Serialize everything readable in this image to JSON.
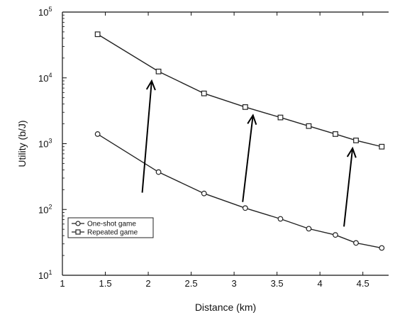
{
  "chart_data": {
    "type": "line",
    "xlabel": "Distance (km)",
    "ylabel": "Utility (b/J)",
    "xlim": [
      1,
      4.8
    ],
    "ylim": [
      10,
      100000
    ],
    "yscale": "log",
    "xticks": [
      "1",
      "1.5",
      "2",
      "2.5",
      "3",
      "3.5",
      "4",
      "4.5"
    ],
    "yticks": [
      {
        "base": "10",
        "exp": "1"
      },
      {
        "base": "10",
        "exp": "2"
      },
      {
        "base": "10",
        "exp": "3"
      },
      {
        "base": "10",
        "exp": "4"
      },
      {
        "base": "10",
        "exp": "5"
      }
    ],
    "x": [
      1.41,
      2.12,
      2.65,
      3.13,
      3.54,
      3.87,
      4.18,
      4.42,
      4.72
    ],
    "series": [
      {
        "name": "One-shot game",
        "marker": "circle",
        "values": [
          1400,
          370,
          175,
          105,
          72,
          51,
          41,
          31,
          26
        ]
      },
      {
        "name": "Repeated game",
        "marker": "square",
        "values": [
          46000,
          12500,
          5800,
          3600,
          2500,
          1850,
          1400,
          1120,
          900
        ]
      }
    ],
    "annotations": [
      {
        "type": "arrow",
        "from": [
          1.93,
          180
        ],
        "to": [
          2.04,
          9000
        ]
      },
      {
        "type": "arrow",
        "from": [
          3.1,
          130
        ],
        "to": [
          3.22,
          2700
        ]
      },
      {
        "type": "arrow",
        "from": [
          4.28,
          55
        ],
        "to": [
          4.38,
          850
        ]
      }
    ],
    "legend_position": "bottom-left",
    "grid": false
  }
}
